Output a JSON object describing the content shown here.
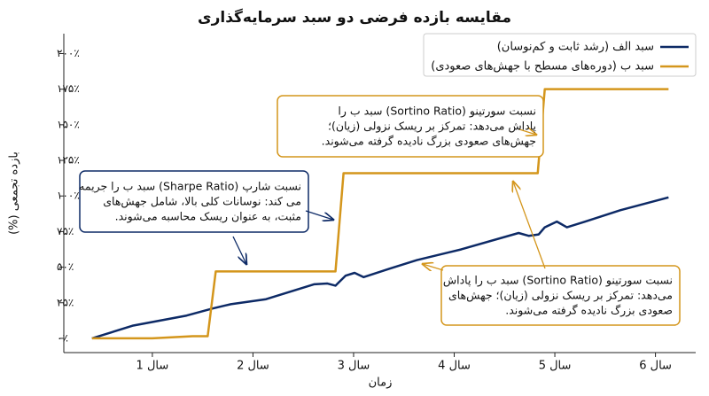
{
  "chart_data": {
    "type": "line",
    "title": "مقایسه بازده فرضی دو سبد سرمایه‌گذاری",
    "xlabel": "زمان",
    "ylabel": "بازده تجمعی (%)",
    "xlim": [
      0.12,
      6.4
    ],
    "xticks": [
      {
        "value": 1,
        "label": "سال 1"
      },
      {
        "value": 2,
        "label": "سال 2"
      },
      {
        "value": 3,
        "label": "سال 3"
      },
      {
        "value": 4,
        "label": "سال 4"
      },
      {
        "value": 5,
        "label": "سال 5"
      },
      {
        "value": 6,
        "label": "سال 6"
      }
    ],
    "ylim": [
      -10,
      214
    ],
    "yticks": [
      {
        "value": 0,
        "label": "۰٪"
      },
      {
        "value": 25,
        "label": "۲۵٪"
      },
      {
        "value": 50,
        "label": "۵۰٪"
      },
      {
        "value": 75,
        "label": "۷۵٪"
      },
      {
        "value": 100,
        "label": "۱۰۰٪"
      },
      {
        "value": 125,
        "label": "۱۲۵٪"
      },
      {
        "value": 150,
        "label": "۱۵۰٪"
      },
      {
        "value": 175,
        "label": "۱۷۵٪"
      },
      {
        "value": 200,
        "label": "۲۰۰٪"
      }
    ],
    "legend": "upper-left",
    "series": [
      {
        "name": "سبد الف (رشد ثابت و کم‌نوسان)",
        "color": "#0d2a66",
        "x": [
          0.4,
          0.81,
          1.34,
          1.6,
          1.78,
          2.13,
          2.61,
          2.74,
          2.82,
          2.92,
          3.01,
          3.1,
          3.36,
          3.63,
          4.07,
          4.64,
          4.74,
          4.84,
          4.9,
          5.02,
          5.12,
          5.3,
          5.65,
          6.13
        ],
        "values": [
          0,
          9,
          16,
          21,
          24,
          27.5,
          38,
          38.5,
          37,
          44,
          46,
          43,
          49,
          55,
          62.5,
          74,
          72,
          73,
          78,
          82,
          78,
          82,
          90,
          99
        ]
      },
      {
        "name": "سبد ب (دوره‌های مسطح با جهش‌های صعودی)",
        "color": "#d4961c",
        "x": [
          0.4,
          1.0,
          1.4,
          1.55,
          1.63,
          2.82,
          2.9,
          4.83,
          4.9,
          6.13
        ],
        "values": [
          0,
          0,
          1.5,
          1.5,
          47,
          47,
          116,
          116,
          175,
          175
        ]
      }
    ],
    "annotations": [
      {
        "lines": [
          "نسبت شارپ (Sharpe Ratio) سبد ب را جریمه",
          "می کند: نوسانات کلی بالا، شامل جهش‌های",
          "مثبت، به عنوان ریسک محاسبه می‌شوند."
        ]
      },
      {
        "lines": [
          "نسبت سورتینو (Sortino Ratio) سبد ب را",
          "پاداش می‌دهد: تمرکز بر ریسک نزولی (زیان)؛",
          "جهش‌های صعودی بزرگ نادیده گرفته می‌شوند."
        ]
      },
      {
        "lines": [
          "نسبت سورتینو (Sortino Ratio) سبد ب را پاداش",
          "می‌دهد: تمرکز بر ریسک نزولی (زیان)؛ جهش‌های",
          "صعودی بزرگ نادیده گرفته می‌شوند."
        ]
      }
    ]
  }
}
